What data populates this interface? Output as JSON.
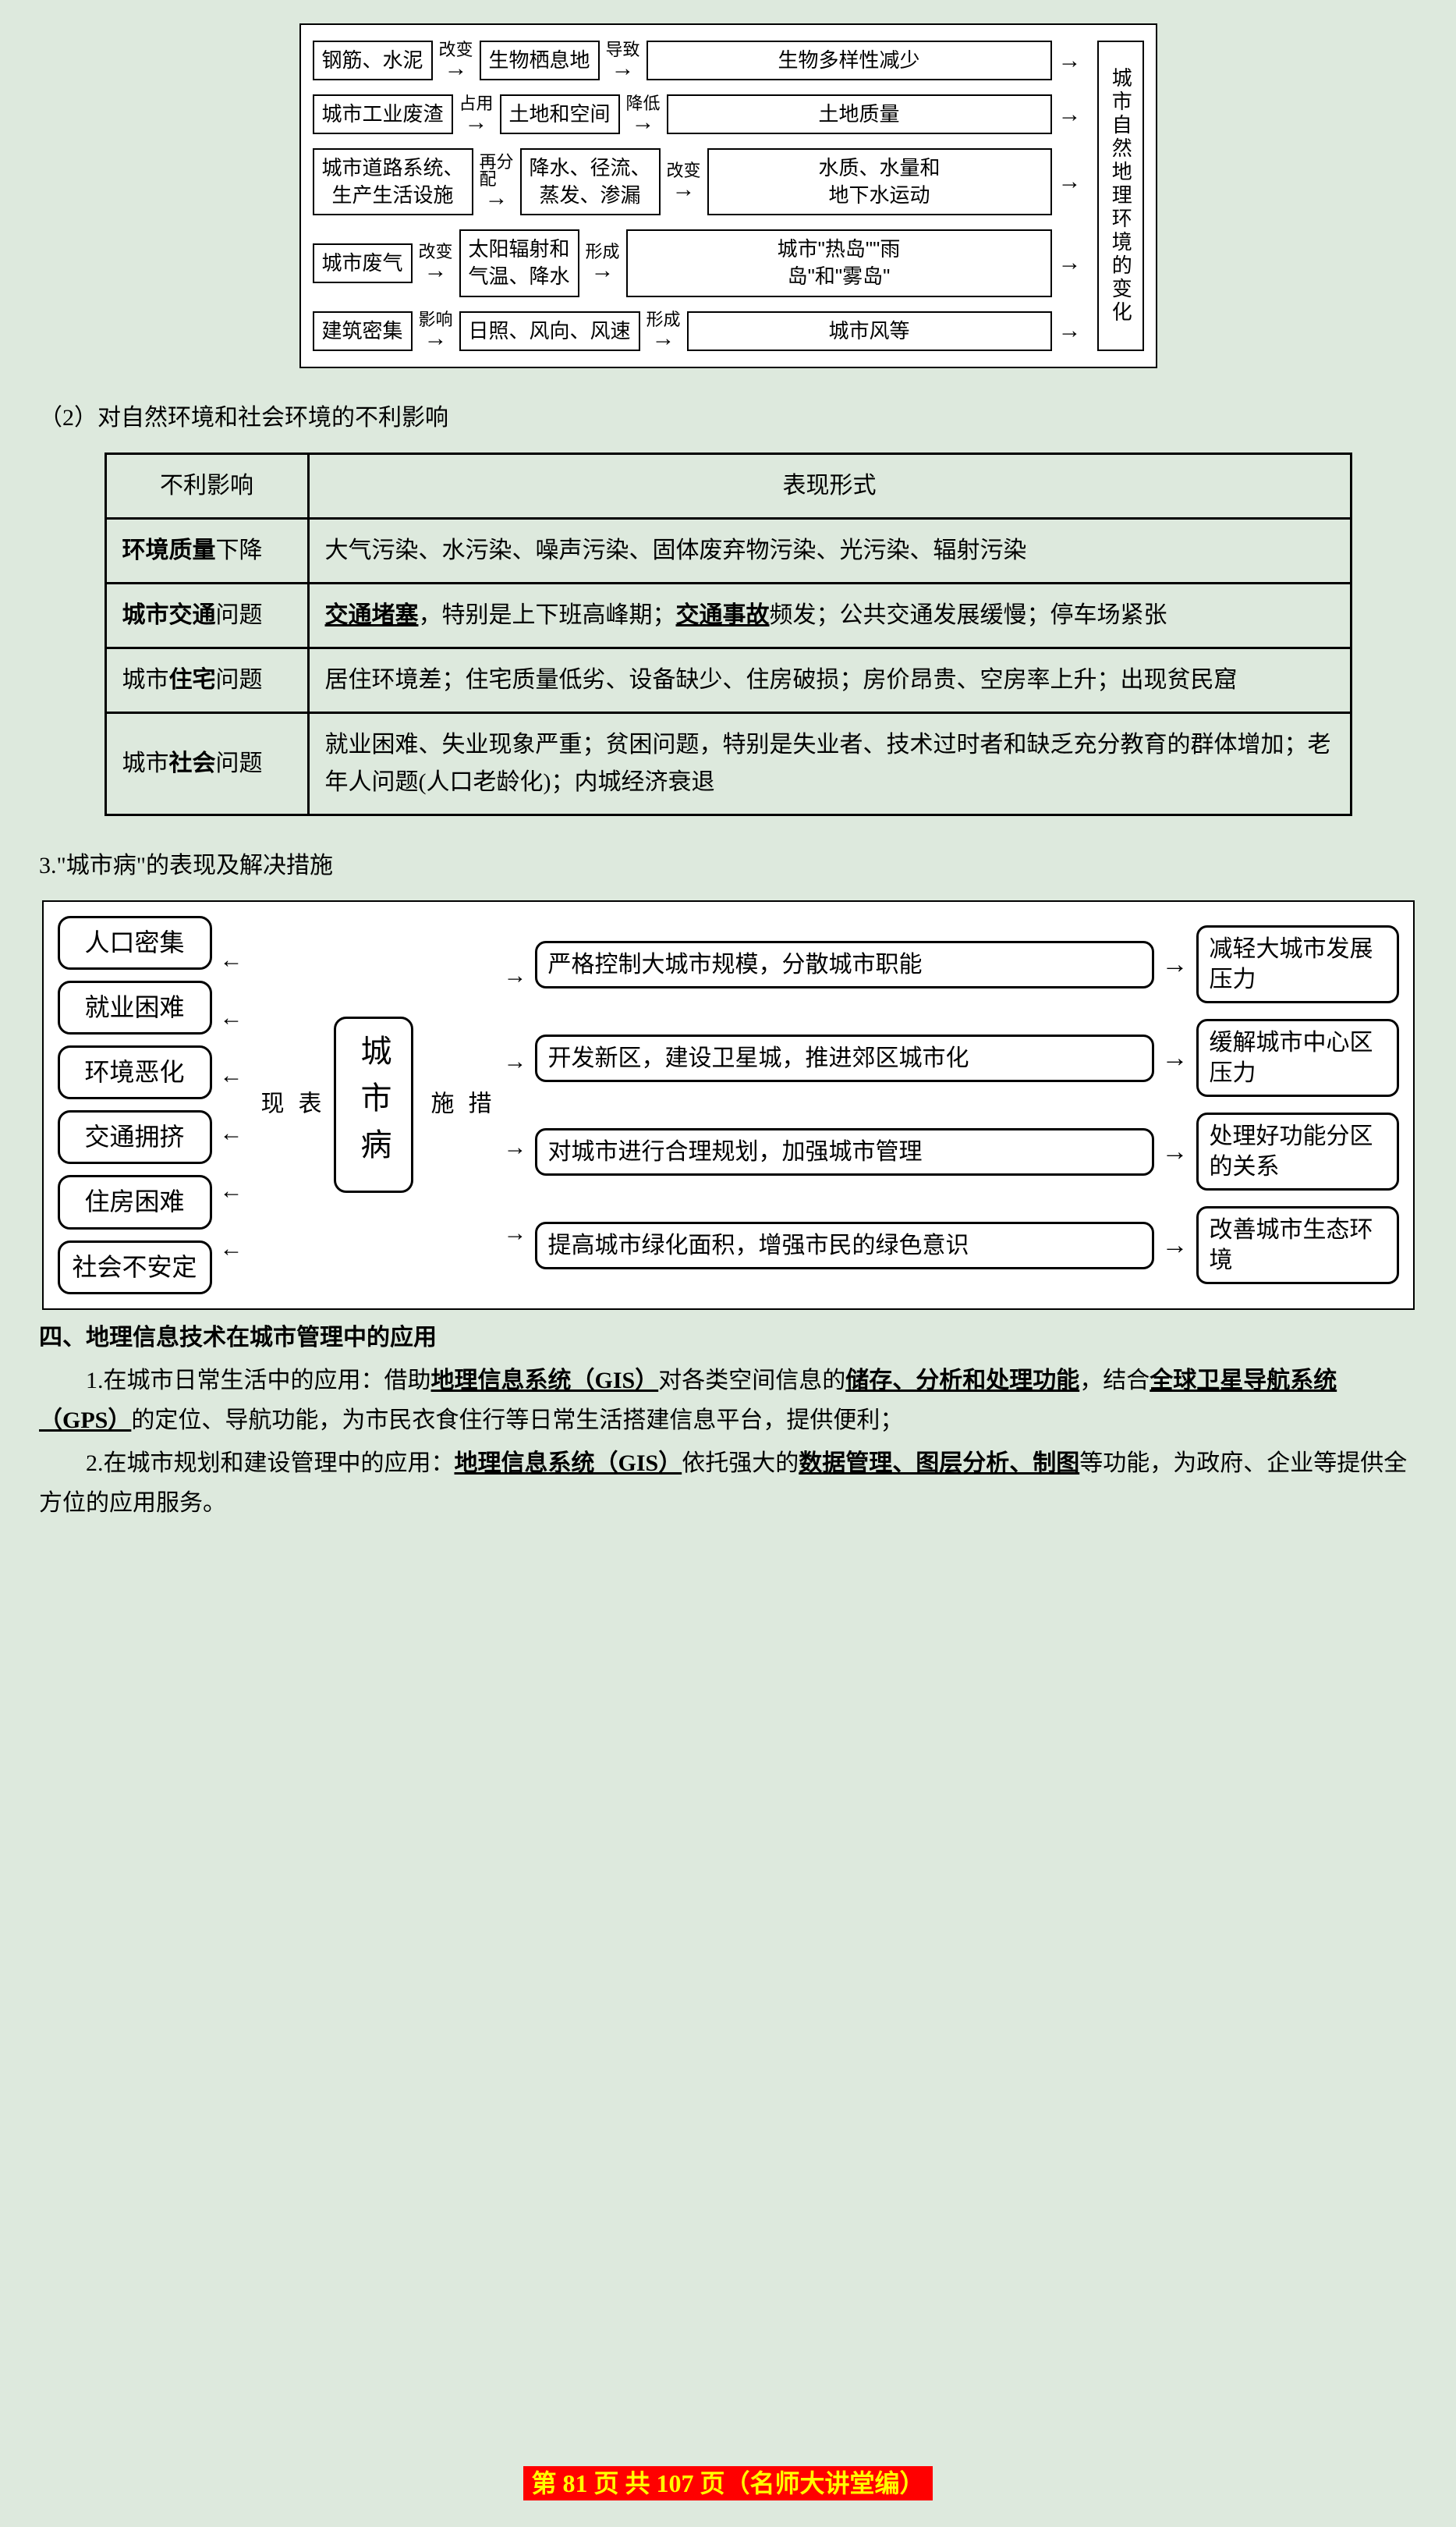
{
  "diagram1": {
    "rows": [
      {
        "c1": "钢筋、水泥",
        "a1": "改变",
        "c2": "生物栖息地",
        "a2": "导致",
        "c3": "生物多样性减少"
      },
      {
        "c1": "城市工业废渣",
        "a1": "占用",
        "c2": "土地和空间",
        "a2": "降低",
        "c3": "土地质量"
      },
      {
        "c1": "城市道路系统、\n生产生活设施",
        "a1": "再分\n配",
        "c2": "降水、径流、\n蒸发、渗漏",
        "a2": "改变",
        "c3": "水质、水量和\n地下水运动"
      },
      {
        "c1": "城市废气",
        "a1": "改变",
        "c2": "太阳辐射和\n气温、降水",
        "a2": "形成",
        "c3": "城市\"热岛\"\"雨\n岛\"和\"雾岛\""
      },
      {
        "c1": "建筑密集",
        "a1": "影响",
        "c2": "日照、风向、风速",
        "a2": "形成",
        "c3": "城市风等"
      }
    ],
    "rightLabel": "城市自然地理环境的变化"
  },
  "para1": "（2）对自然环境和社会环境的不利影响",
  "table": {
    "head": [
      "不利影响",
      "表现形式"
    ],
    "rows": [
      {
        "k_html": "<span class=\"bold\">环境质量</span>下降",
        "v_html": "大气污染、水污染、噪声污染、固体废弃物污染、光污染、辐射污染"
      },
      {
        "k_html": "<span class=\"bold\">城市交通</span>问题",
        "v_html": "<span class=\"ul\">交通堵塞</span>，特别是上下班高峰期；<span class=\"ul\">交通事故</span>频发；公共交通发展缓慢；停车场紧张"
      },
      {
        "k_html": "城市<span class=\"bold\">住宅</span>问题",
        "v_html": "居住环境差；住宅质量低劣、设备缺少、住房破损；房价昂贵、空房率上升；出现贫民窟"
      },
      {
        "k_html": "城市<span class=\"bold\">社会</span>问题",
        "v_html": "就业困难、失业现象严重；贫困问题，特别是失业者、技术过时者和缺乏充分教育的群体增加；老年人问题(人口老龄化)；内城经济衰退"
      }
    ]
  },
  "h3": "3.\"城市病\"的表现及解决措施",
  "diagram2": {
    "left": [
      "人口密集",
      "就业困难",
      "环境恶化",
      "交通拥挤",
      "住房困难",
      "社会不安定"
    ],
    "leftLabel": "表\n现",
    "center": "城市病",
    "rightLabel": "措\n施",
    "right": [
      {
        "m": "严格控制大城市规模，分散城市职能",
        "r": "减轻大城市发展压力"
      },
      {
        "m": "开发新区，建设卫星城，推进郊区城市化",
        "r": "缓解城市中心区压力"
      },
      {
        "m": "对城市进行合理规划，加强城市管理",
        "r": "处理好功能分区的关系"
      },
      {
        "m": "提高城市绿化面积，增强市民的绿色意识",
        "r": "改善城市生态环境"
      }
    ]
  },
  "section4": {
    "title": "四、地理信息技术在城市管理中的应用",
    "p1_html": "1.在城市日常生活中的应用：借助<span class=\"ul\">地理信息系统（GIS）</span>对各类空间信息的<span class=\"ul\">储存、分析和处理功能</span>，结合<span class=\"ul\">全球卫星导航系统（GPS）</span>的定位、导航功能，为市民衣食住行等日常生活搭建信息平台，提供便利；",
    "p2_html": "2.在城市规划和建设管理中的应用：<span class=\"ul\">地理信息系统（GIS）</span>依托强大的<span class=\"ul\">数据管理、图层分析、制图</span>等功能，为政府、企业等提供全方位的应用服务。"
  },
  "footer": "第 81 页 共 107 页（名师大讲堂编）"
}
